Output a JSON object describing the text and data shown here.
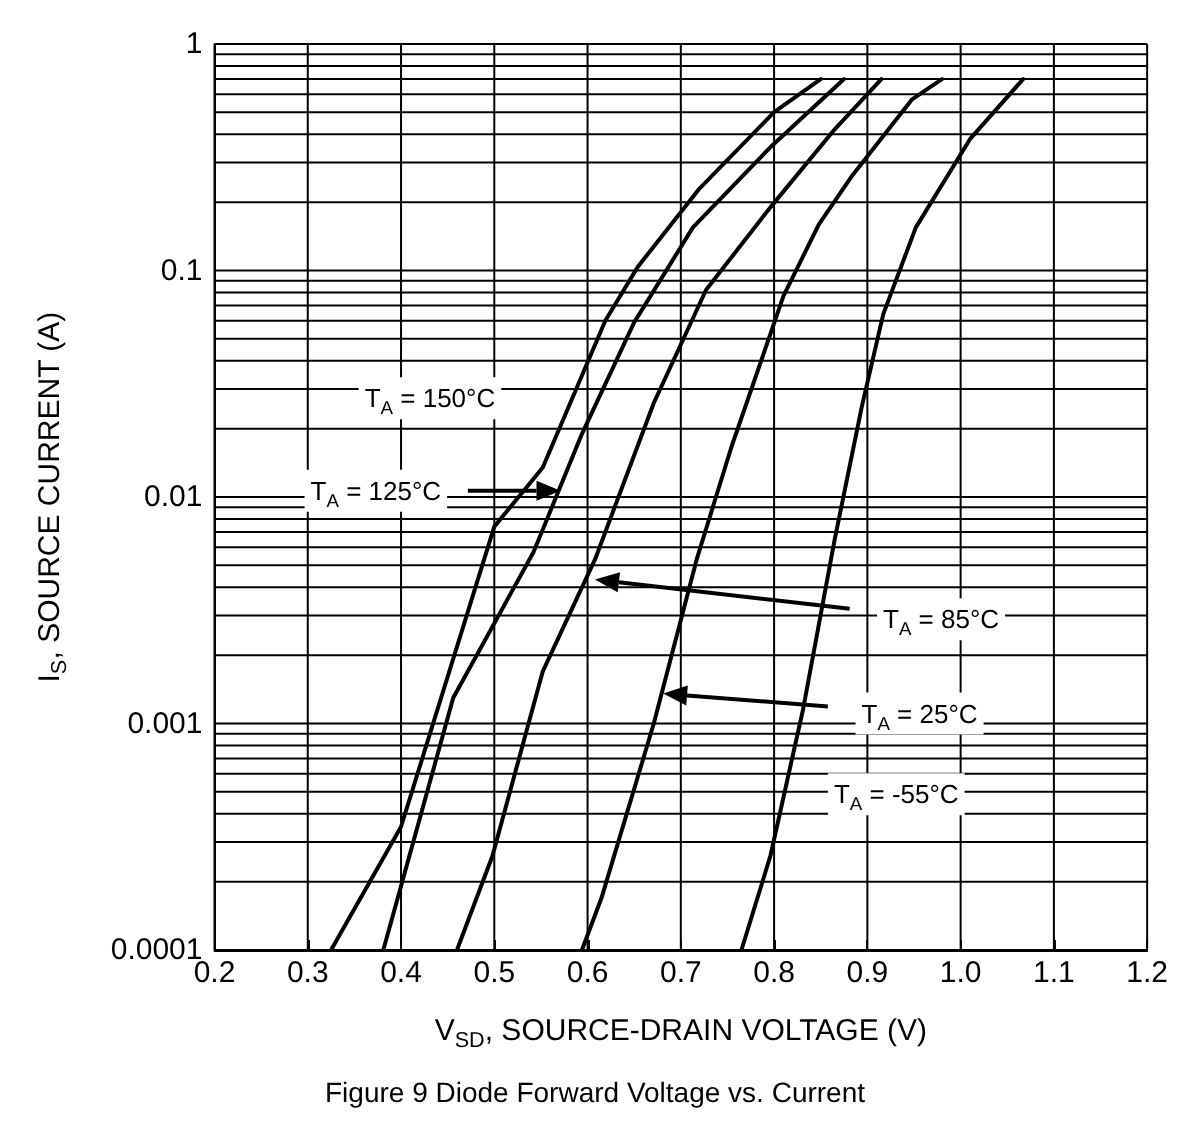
{
  "chart_data": {
    "type": "line",
    "title": "Figure 9 Diode Forward Voltage vs. Current",
    "xlabel": "V$_{SD}$, SOURCE-DRAIN VOLTAGE (V)",
    "ylabel": "I$_{S}$, SOURCE CURRENT (A)",
    "log": "y",
    "grid": true,
    "marker": "none",
    "line_style": "solid",
    "xlim": [
      0.2,
      1.2
    ],
    "xticks": [
      0.2,
      0.3,
      0.4,
      0.5,
      0.6,
      0.7,
      0.8,
      0.9,
      {
        "value": 1,
        "label": "1.0"
      },
      1.1,
      1.2
    ],
    "ylim": [
      0.0001,
      1
    ],
    "yticks": [
      0.0001,
      {
        "value": 0.0002,
        "label": null
      },
      {
        "value": 0.0003,
        "label": null
      },
      {
        "value": 0.0004,
        "label": null
      },
      {
        "value": 0.0005,
        "label": null
      },
      {
        "value": 0.0006,
        "label": null
      },
      {
        "value": 0.0007,
        "label": null
      },
      {
        "value": 0.0008,
        "label": null
      },
      {
        "value": 0.0009,
        "label": null
      },
      0.001,
      {
        "value": 0.002,
        "label": null
      },
      {
        "value": 0.003,
        "label": null
      },
      {
        "value": 0.004,
        "label": null
      },
      {
        "value": 0.005,
        "label": null
      },
      {
        "value": 0.006,
        "label": null
      },
      {
        "value": 0.007,
        "label": null
      },
      {
        "value": 0.008,
        "label": null
      },
      {
        "value": 0.009,
        "label": null
      },
      0.01,
      {
        "value": 0.02,
        "label": null
      },
      {
        "value": 0.03,
        "label": null
      },
      {
        "value": 0.04,
        "label": null
      },
      {
        "value": 0.05,
        "label": null
      },
      {
        "value": 0.06,
        "label": null
      },
      {
        "value": 0.07,
        "label": null
      },
      {
        "value": 0.08,
        "label": null
      },
      {
        "value": 0.09,
        "label": null
      },
      0.1,
      {
        "value": 0.2,
        "label": null
      },
      {
        "value": 0.3,
        "label": null
      },
      {
        "value": 0.4,
        "label": null
      },
      {
        "value": 0.5,
        "label": null
      },
      {
        "value": 0.6,
        "label": null
      },
      {
        "value": 0.7,
        "label": null
      },
      {
        "value": 0.8,
        "label": null
      },
      {
        "value": 0.9,
        "label": null
      },
      1
    ],
    "series": [
      {
        "color": "#000000",
        "x": [
          0.325,
          0.4,
          0.5,
          0.552,
          0.619,
          0.654,
          0.72,
          0.8,
          0.85
        ],
        "values": [
          0.0001,
          0.00035,
          0.0074,
          0.0135,
          0.06,
          0.104,
          0.23,
          0.5,
          0.7
        ]
      },
      {
        "color": "#000000",
        "x": [
          0.381,
          0.456,
          0.542,
          0.594,
          0.65,
          0.713,
          0.796,
          0.875
        ],
        "values": [
          0.0001,
          0.0013,
          0.0057,
          0.019,
          0.059,
          0.155,
          0.35,
          0.7
        ]
      },
      {
        "color": "#000000",
        "x": [
          0.46,
          0.498,
          0.552,
          0.608,
          0.671,
          0.727,
          0.796,
          0.865,
          0.915
        ],
        "values": [
          0.0001,
          0.00026,
          0.0017,
          0.0053,
          0.026,
          0.082,
          0.19,
          0.42,
          0.7
        ]
      },
      {
        "color": "#000000",
        "x": [
          0.594,
          0.615,
          0.671,
          0.717,
          0.754,
          0.81,
          0.848,
          0.883,
          0.948,
          0.98
        ],
        "values": [
          0.0001,
          0.00017,
          0.001,
          0.0053,
          0.0165,
          0.077,
          0.16,
          0.26,
          0.57,
          0.7
        ]
      },
      {
        "color": "#000000",
        "x": [
          0.765,
          0.796,
          0.831,
          0.865,
          0.894,
          0.917,
          0.952,
          1.01,
          1.067
        ],
        "values": [
          0.0001,
          0.00026,
          0.00115,
          0.0065,
          0.025,
          0.064,
          0.155,
          0.38,
          0.7
        ]
      }
    ],
    "annotations": [
      "T$_{A}$ = 150°C",
      "T$_{A}$ = 125°C",
      "T$_{A}$ = 85°C",
      "T$_{A}$ = 25°C",
      "T$_{A}$ = -55°C"
    ]
  }
}
